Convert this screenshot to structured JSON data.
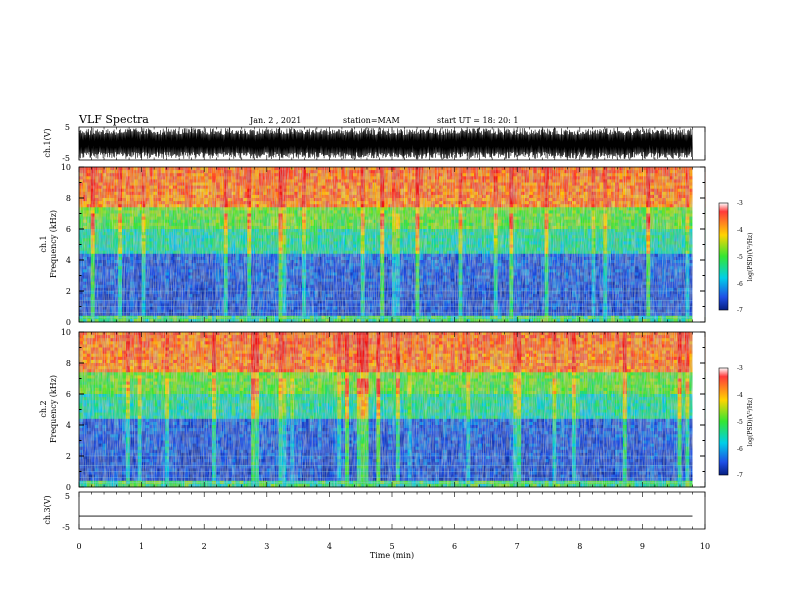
{
  "header": {
    "title": "VLF Spectra",
    "date": "Jan. 2 , 2021",
    "station": "station=MAM",
    "start": "start UT =  18: 20: 1"
  },
  "chart_data": [
    {
      "type": "line",
      "ylabel": "ch.1(V)",
      "ylim": [
        -5,
        5
      ],
      "ytick_labels": [
        "5",
        "-5"
      ],
      "description_series": [
        {
          "values_min": -5,
          "values_max": 5
        }
      ]
    },
    {
      "type": "heatmap",
      "ylabel_top": "ch.1",
      "ylabel": "Frequency (kHz)",
      "xlim": [
        0,
        10
      ],
      "ylim": [
        0,
        10
      ],
      "ytick_labels": [
        "0",
        "2",
        "4",
        "6",
        "8",
        "10"
      ],
      "colorbar": {
        "label": "log(PSD)(V²/Hz)",
        "range": [
          -7,
          -3
        ],
        "tick_labels": [
          "-3",
          "-4",
          "-5",
          "-6",
          "-7"
        ]
      },
      "bands": [
        {
          "freq_khz": [
            0,
            4.5
          ],
          "log_psd": -6.2
        },
        {
          "freq_khz": [
            4.5,
            6
          ],
          "log_psd": -5.3
        },
        {
          "freq_khz": [
            6,
            7.5
          ],
          "log_psd": -4.8
        },
        {
          "freq_khz": [
            7.5,
            10
          ],
          "log_psd": -3.8
        }
      ]
    },
    {
      "type": "heatmap",
      "ylabel_top": "ch.2",
      "ylabel": "Frequency (kHz)",
      "xlim": [
        0,
        10
      ],
      "ylim": [
        0,
        10
      ],
      "ytick_labels": [
        "0",
        "2",
        "4",
        "6",
        "8",
        "10"
      ],
      "colorbar": {
        "label": "log(PSD)(V²/Hz)",
        "range": [
          -7,
          -3
        ],
        "tick_labels": [
          "-3",
          "-4",
          "-5",
          "-6",
          "-7"
        ]
      },
      "bands": [
        {
          "freq_khz": [
            0,
            4.5
          ],
          "log_psd": -6.2
        },
        {
          "freq_khz": [
            4.5,
            6
          ],
          "log_psd": -5.3
        },
        {
          "freq_khz": [
            6,
            7.5
          ],
          "log_psd": -4.8
        },
        {
          "freq_khz": [
            7.5,
            10
          ],
          "log_psd": -3.8
        }
      ]
    },
    {
      "type": "line",
      "ylabel": "ch.3(V)",
      "ylim": [
        -5,
        5
      ],
      "ytick_labels": [
        "5",
        "-5"
      ],
      "series": [
        {
          "x": [
            0,
            9.8
          ],
          "y": [
            -1.5,
            -1.5
          ]
        }
      ]
    }
  ],
  "xaxis": {
    "label": "Time (min)",
    "xlim": [
      0,
      10
    ],
    "tick_labels": [
      "0",
      "1",
      "2",
      "3",
      "4",
      "5",
      "6",
      "7",
      "8",
      "9",
      "10"
    ]
  }
}
